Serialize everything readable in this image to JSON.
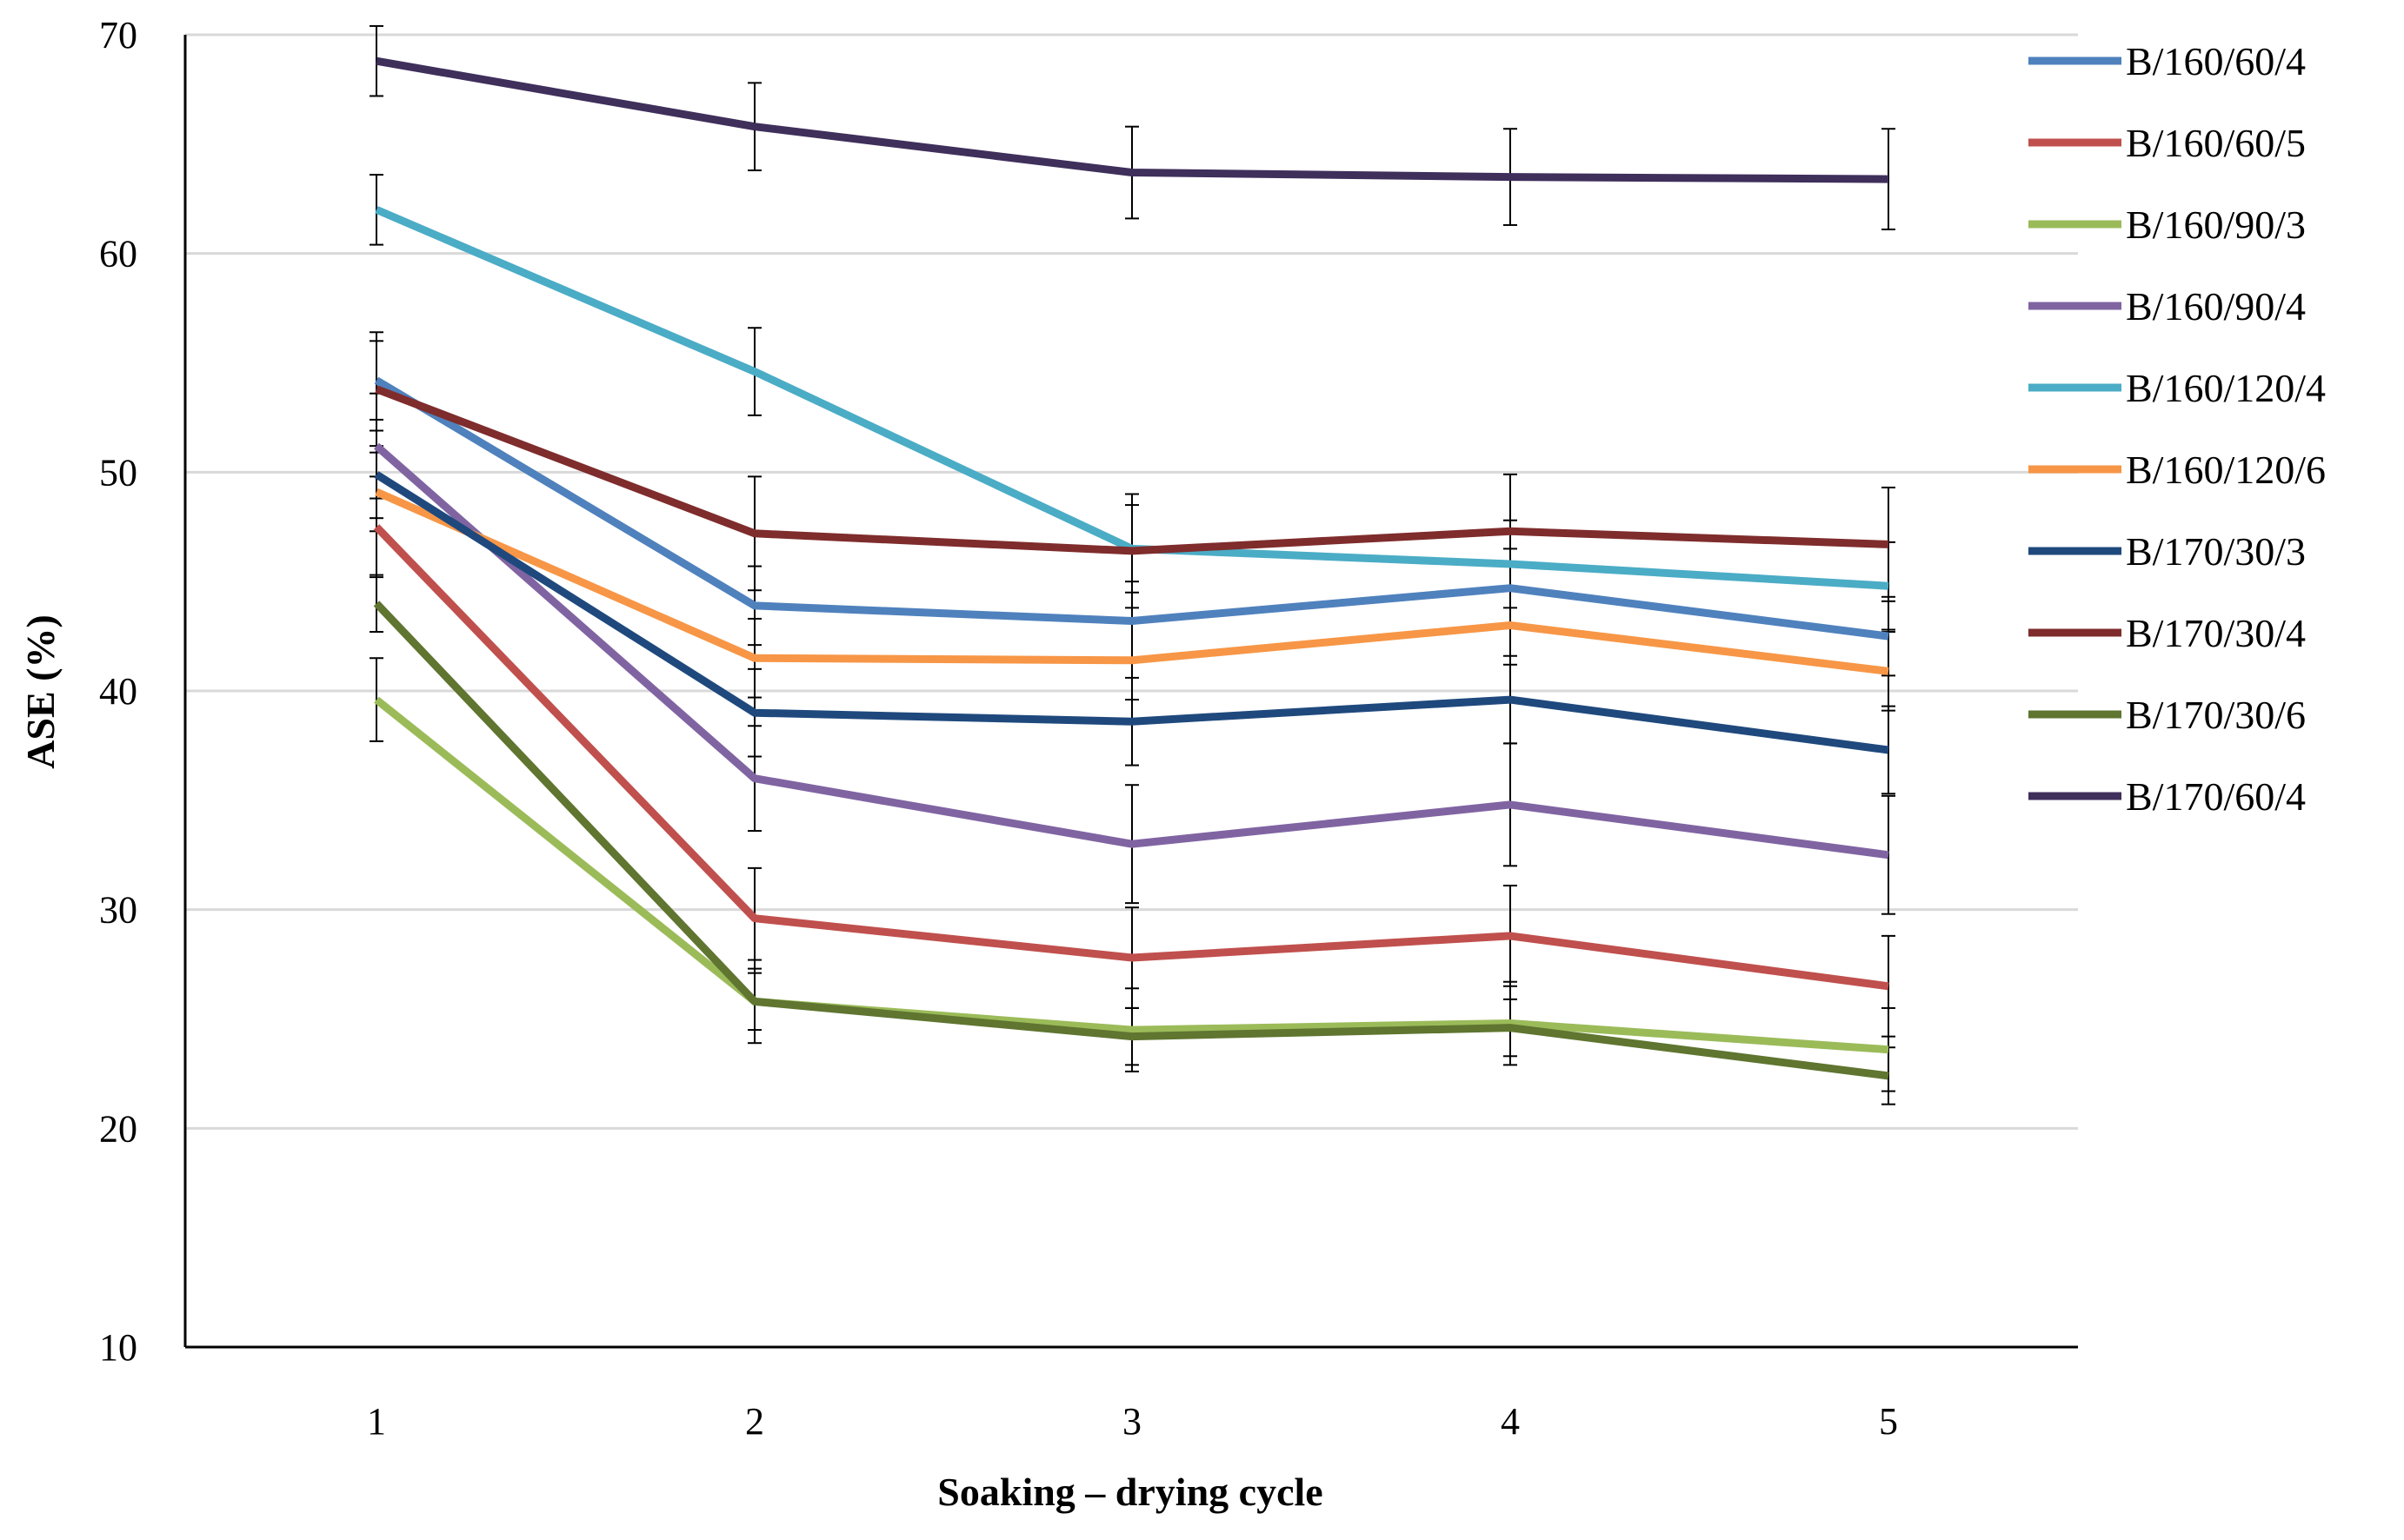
{
  "chart_data": {
    "type": "line",
    "title": "",
    "xlabel": "Soaking – drying cycle",
    "ylabel": "ASE (%)",
    "x": [
      1,
      2,
      3,
      4,
      5
    ],
    "x_tick_labels": [
      "1",
      "2",
      "3",
      "4",
      "5"
    ],
    "ylim": [
      10,
      70
    ],
    "y_ticks": [
      10,
      20,
      30,
      40,
      50,
      60,
      70
    ],
    "y_tick_labels": [
      "10",
      "20",
      "30",
      "40",
      "50",
      "60",
      "70"
    ],
    "grid": "horizontal",
    "legend_position": "right",
    "error_bars": true,
    "series": [
      {
        "name": "B/160/60/4",
        "color": "#4F81BD",
        "values": [
          54.2,
          43.9,
          43.2,
          44.7,
          42.5
        ],
        "errors": [
          1.8,
          1.8,
          1.8,
          1.8,
          1.8
        ]
      },
      {
        "name": "B/160/60/5",
        "color": "#C0504D",
        "values": [
          47.5,
          29.6,
          27.8,
          28.8,
          26.5
        ],
        "errors": [
          2.3,
          2.3,
          2.3,
          2.3,
          2.3
        ]
      },
      {
        "name": "B/160/90/3",
        "color": "#9BBB59",
        "values": [
          39.6,
          25.8,
          24.5,
          24.8,
          23.6
        ],
        "errors": [
          1.9,
          1.9,
          1.9,
          1.9,
          1.9
        ]
      },
      {
        "name": "B/160/90/4",
        "color": "#8064A2",
        "values": [
          51.2,
          36.0,
          33.0,
          34.8,
          32.5
        ],
        "errors": [
          2.4,
          2.4,
          2.7,
          2.8,
          2.7
        ]
      },
      {
        "name": "B/160/120/4",
        "color": "#4BACC6",
        "values": [
          62.0,
          54.6,
          46.5,
          45.8,
          44.8
        ],
        "errors": [
          1.6,
          2.0,
          2.0,
          2.0,
          2.0
        ]
      },
      {
        "name": "B/160/120/6",
        "color": "#F79646",
        "values": [
          49.1,
          41.5,
          41.4,
          43.0,
          40.9
        ],
        "errors": [
          1.8,
          1.8,
          1.8,
          1.8,
          1.8
        ]
      },
      {
        "name": "B/170/30/3",
        "color": "#1F497D",
        "values": [
          49.9,
          39.0,
          38.6,
          39.6,
          37.3
        ],
        "errors": [
          2.0,
          2.0,
          2.0,
          2.0,
          2.0
        ]
      },
      {
        "name": "B/170/30/4",
        "color": "#7F2C2C",
        "values": [
          53.8,
          47.2,
          46.4,
          47.3,
          46.7
        ],
        "errors": [
          2.6,
          2.6,
          2.6,
          2.6,
          2.6
        ]
      },
      {
        "name": "B/170/30/6",
        "color": "#5F7530",
        "values": [
          44.0,
          25.8,
          24.2,
          24.6,
          22.4
        ],
        "errors": [
          1.3,
          1.3,
          1.3,
          1.3,
          1.3
        ]
      },
      {
        "name": "B/170/60/4",
        "color": "#3F2F5B",
        "values": [
          68.8,
          65.8,
          63.7,
          63.5,
          63.4
        ],
        "errors": [
          1.6,
          2.0,
          2.1,
          2.2,
          2.3
        ]
      }
    ]
  }
}
